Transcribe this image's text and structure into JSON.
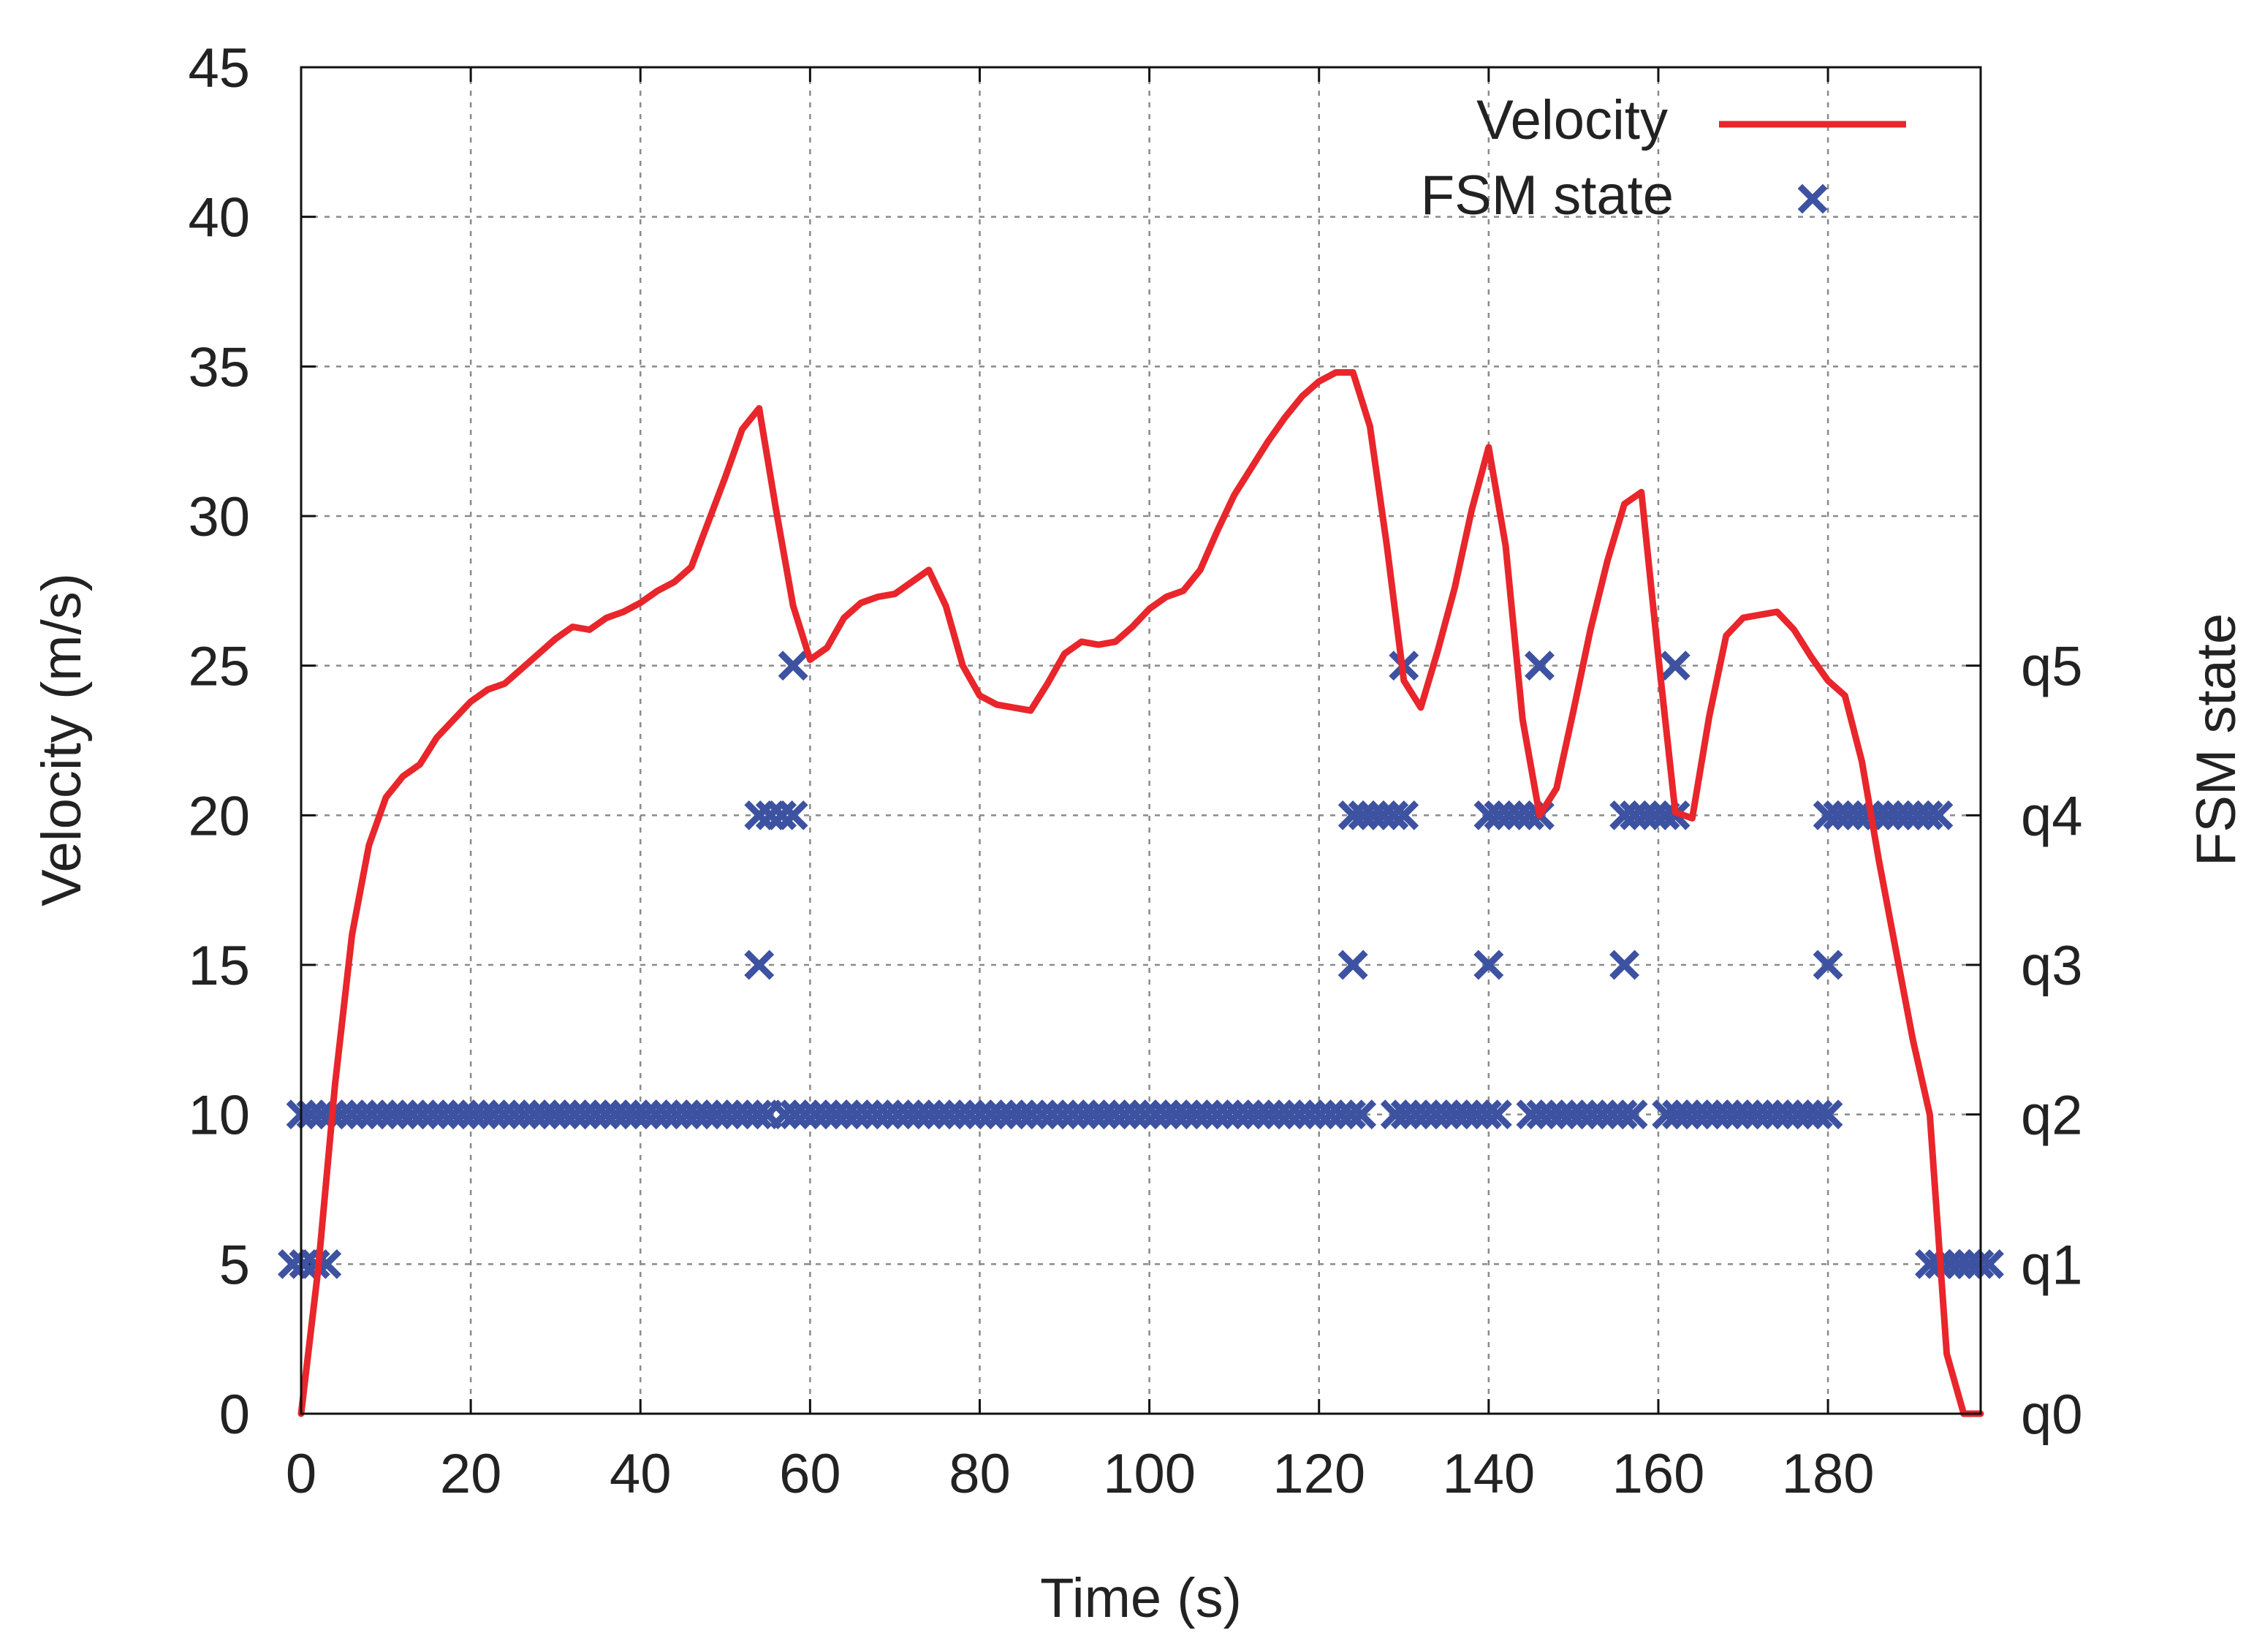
{
  "chart_data": {
    "type": "line",
    "title": "",
    "xlabel": "Time (s)",
    "ylabel": "Velocity (m/s)",
    "y2label": "FSM state",
    "xlim": [
      0,
      198
    ],
    "ylim": [
      0,
      45
    ],
    "xticks": [
      0,
      20,
      40,
      60,
      80,
      100,
      120,
      140,
      160,
      180
    ],
    "yticks": [
      0,
      5,
      10,
      15,
      20,
      25,
      30,
      35,
      40,
      45
    ],
    "y2ticks": [
      {
        "value": 0,
        "label": "q0"
      },
      {
        "value": 5,
        "label": "q1"
      },
      {
        "value": 10,
        "label": "q2"
      },
      {
        "value": 15,
        "label": "q3"
      },
      {
        "value": 20,
        "label": "q4"
      },
      {
        "value": 25,
        "label": "q5"
      }
    ],
    "grid": true,
    "legend_position": "top-right",
    "colors": {
      "velocity": "#e8262b",
      "fsm": "#3d52a1"
    },
    "series": [
      {
        "name": "Velocity",
        "style": "line",
        "x": [
          0,
          2,
          4,
          6,
          8,
          10,
          12,
          14,
          16,
          18,
          20,
          22,
          24,
          26,
          28,
          30,
          32,
          34,
          36,
          38,
          40,
          42,
          44,
          46,
          48,
          50,
          52,
          54,
          56,
          58,
          60,
          62,
          64,
          66,
          68,
          70,
          72,
          74,
          76,
          78,
          80,
          82,
          84,
          86,
          88,
          90,
          92,
          94,
          96,
          98,
          100,
          102,
          104,
          106,
          108,
          110,
          112,
          114,
          116,
          118,
          120,
          122,
          124,
          126,
          128,
          130,
          132,
          134,
          136,
          138,
          140,
          142,
          144,
          146,
          148,
          150,
          152,
          154,
          156,
          158,
          160,
          162,
          164,
          166,
          168,
          170,
          172,
          174,
          176,
          178,
          180,
          182,
          184,
          186,
          188,
          190,
          192,
          194,
          196,
          198
        ],
        "y": [
          0,
          4.8,
          11,
          16,
          19,
          20.6,
          21.3,
          21.7,
          22.6,
          23.2,
          23.8,
          24.2,
          24.4,
          24.9,
          25.4,
          25.9,
          26.3,
          26.2,
          26.6,
          26.8,
          27.1,
          27.5,
          27.8,
          28.3,
          29.8,
          31.3,
          32.9,
          33.6,
          30.2,
          27,
          25.2,
          25.6,
          26.6,
          27.1,
          27.3,
          27.4,
          27.8,
          28.2,
          27,
          25,
          24,
          23.7,
          23.6,
          23.5,
          24.4,
          25.4,
          25.8,
          25.7,
          25.8,
          26.3,
          26.9,
          27.3,
          27.5,
          28.2,
          29.5,
          30.7,
          31.6,
          32.5,
          33.3,
          34,
          34.5,
          34.8,
          34.8,
          33,
          29,
          24.5,
          23.6,
          25.5,
          27.6,
          30.2,
          32.3,
          29,
          23.2,
          20,
          20.9,
          23.5,
          26.2,
          28.5,
          30.4,
          30.8,
          25.3,
          20.1,
          19.9,
          23.3,
          26,
          26.6,
          26.7,
          26.8,
          26.2,
          25.3,
          24.5,
          24,
          21.8,
          18.5,
          15.5,
          12.5,
          10,
          2,
          0,
          0
        ]
      },
      {
        "name": "FSM state",
        "style": "markers",
        "marker": "x",
        "segments": [
          {
            "state": "q1",
            "value": 5,
            "x": [
              -1,
              3
            ]
          },
          {
            "state": "q2",
            "value": 10,
            "x": [
              0,
              55
            ]
          },
          {
            "state": "q3",
            "value": 15,
            "x": [
              54,
              54
            ]
          },
          {
            "state": "q4",
            "value": 20,
            "x": [
              54,
              58
            ]
          },
          {
            "state": "q5",
            "value": 25,
            "x": [
              58,
              58
            ]
          },
          {
            "state": "q2",
            "value": 10,
            "x": [
              57,
              125
            ]
          },
          {
            "state": "q3",
            "value": 15,
            "x": [
              124,
              124
            ]
          },
          {
            "state": "q4",
            "value": 20,
            "x": [
              124,
              130
            ]
          },
          {
            "state": "q5",
            "value": 25,
            "x": [
              130,
              130
            ]
          },
          {
            "state": "q2",
            "value": 10,
            "x": [
              129,
              141
            ]
          },
          {
            "state": "q3",
            "value": 15,
            "x": [
              140,
              140
            ]
          },
          {
            "state": "q4",
            "value": 20,
            "x": [
              140,
              146
            ]
          },
          {
            "state": "q5",
            "value": 25,
            "x": [
              146,
              146
            ]
          },
          {
            "state": "q2",
            "value": 10,
            "x": [
              145,
              157
            ]
          },
          {
            "state": "q3",
            "value": 15,
            "x": [
              156,
              156
            ]
          },
          {
            "state": "q4",
            "value": 20,
            "x": [
              156,
              162
            ]
          },
          {
            "state": "q5",
            "value": 25,
            "x": [
              162,
              162
            ]
          },
          {
            "state": "q2",
            "value": 10,
            "x": [
              161,
              180
            ]
          },
          {
            "state": "q3",
            "value": 15,
            "x": [
              180,
              180
            ]
          },
          {
            "state": "q4",
            "value": 20,
            "x": [
              180,
              193
            ]
          },
          {
            "state": "q1",
            "value": 5,
            "x": [
              192,
              199
            ]
          }
        ]
      }
    ]
  }
}
